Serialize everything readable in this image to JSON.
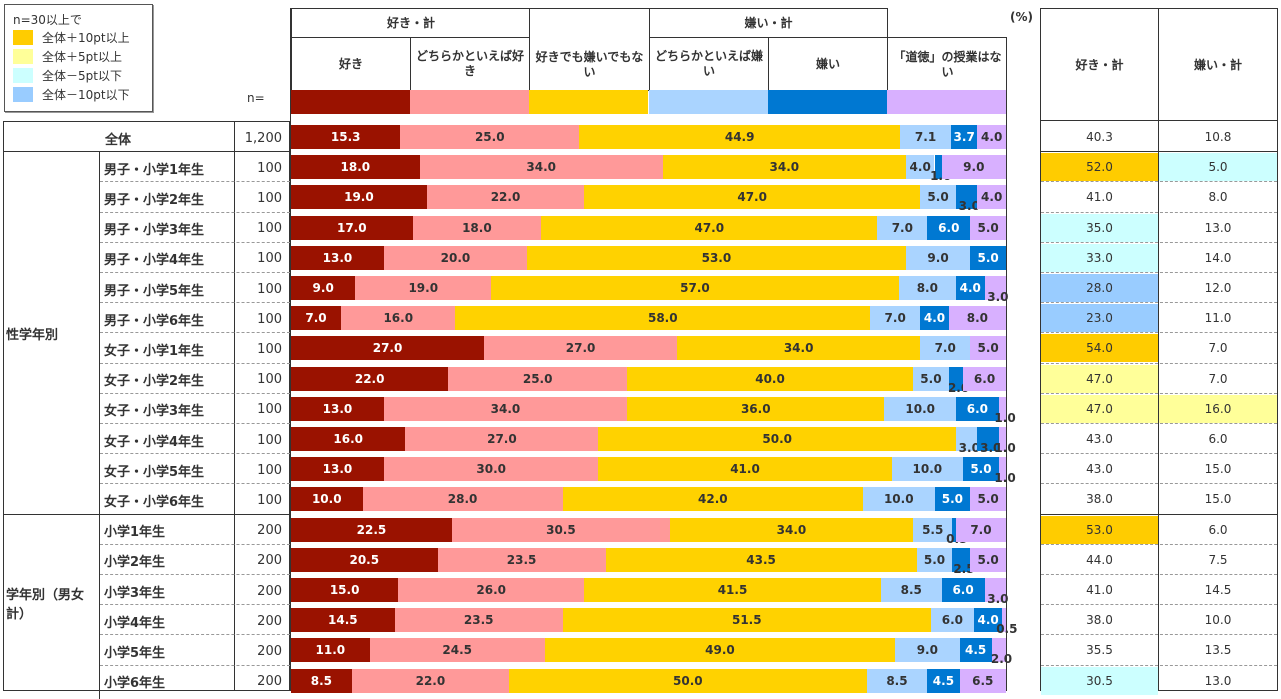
{
  "legend": {
    "title": "n=30以上で",
    "items": [
      {
        "label": "全体＋10pt以上",
        "color": "#FFCC00"
      },
      {
        "label": "全体＋5pt以上",
        "color": "#FFFF99"
      },
      {
        "label": "全体－5pt以下",
        "color": "#CCFFFF"
      },
      {
        "label": "全体－10pt以下",
        "color": "#99CCFF"
      }
    ]
  },
  "n_header": "n=",
  "pct_unit": "(%)",
  "header": {
    "group_like": "好き・計",
    "group_dislike": "嫌い・計",
    "columns": [
      "好き",
      "どちらかといえば好き",
      "好きでも嫌いでもない",
      "どちらかといえば嫌い",
      "嫌い",
      "「道徳」の授業はない"
    ]
  },
  "right_header": {
    "like_total": "好き・計",
    "dislike_total": "嫌い・計"
  },
  "groups": [
    {
      "label": "全体"
    },
    {
      "label": "性学年別"
    },
    {
      "label": "学年別（男女計）"
    }
  ],
  "chart_data": {
    "type": "bar",
    "orientation": "horizontal-stacked-100",
    "unit": "%",
    "series_names": [
      "好き",
      "どちらかといえば好き",
      "好きでも嫌いでもない",
      "どちらかといえば嫌い",
      "嫌い",
      "「道徳」の授業はない"
    ],
    "series_colors": [
      "#9A1200",
      "#FF9999",
      "#FFD200",
      "#AAD4FF",
      "#0078D2",
      "#D8B0FF"
    ],
    "categories": [
      "全体",
      "男子・小学1年生",
      "男子・小学2年生",
      "男子・小学3年生",
      "男子・小学4年生",
      "男子・小学5年生",
      "男子・小学6年生",
      "女子・小学1年生",
      "女子・小学2年生",
      "女子・小学3年生",
      "女子・小学4年生",
      "女子・小学5年生",
      "女子・小学6年生",
      "小学1年生",
      "小学2年生",
      "小学3年生",
      "小学4年生",
      "小学5年生",
      "小学6年生"
    ],
    "n": [
      "1,200",
      "100",
      "100",
      "100",
      "100",
      "100",
      "100",
      "100",
      "100",
      "100",
      "100",
      "100",
      "100",
      "200",
      "200",
      "200",
      "200",
      "200",
      "200"
    ],
    "values": [
      [
        15.3,
        25.0,
        44.9,
        7.1,
        3.7,
        4.0
      ],
      [
        18.0,
        34.0,
        34.0,
        4.0,
        1.0,
        9.0
      ],
      [
        19.0,
        22.0,
        47.0,
        5.0,
        3.0,
        4.0
      ],
      [
        17.0,
        18.0,
        47.0,
        7.0,
        6.0,
        5.0
      ],
      [
        13.0,
        20.0,
        53.0,
        9.0,
        5.0,
        0
      ],
      [
        9.0,
        19.0,
        57.0,
        8.0,
        4.0,
        3.0
      ],
      [
        7.0,
        16.0,
        58.0,
        7.0,
        4.0,
        8.0
      ],
      [
        27.0,
        27.0,
        34.0,
        7.0,
        0,
        5.0
      ],
      [
        22.0,
        25.0,
        40.0,
        5.0,
        2.0,
        6.0
      ],
      [
        13.0,
        34.0,
        36.0,
        10.0,
        6.0,
        1.0
      ],
      [
        16.0,
        27.0,
        50.0,
        3.0,
        3.0,
        1.0
      ],
      [
        13.0,
        30.0,
        41.0,
        10.0,
        5.0,
        1.0
      ],
      [
        10.0,
        28.0,
        42.0,
        10.0,
        5.0,
        5.0
      ],
      [
        22.5,
        30.5,
        34.0,
        5.5,
        0.5,
        7.0
      ],
      [
        20.5,
        23.5,
        43.5,
        5.0,
        2.5,
        5.0
      ],
      [
        15.0,
        26.0,
        41.5,
        8.5,
        6.0,
        3.0
      ],
      [
        14.5,
        23.5,
        51.5,
        6.0,
        4.0,
        0.5
      ],
      [
        11.0,
        24.5,
        49.0,
        9.0,
        4.5,
        2.0
      ],
      [
        8.5,
        22.0,
        50.0,
        8.5,
        4.5,
        6.5
      ]
    ],
    "like_total": [
      "40.3",
      "52.0",
      "41.0",
      "35.0",
      "33.0",
      "28.0",
      "23.0",
      "54.0",
      "47.0",
      "47.0",
      "43.0",
      "43.0",
      "38.0",
      "53.0",
      "44.0",
      "41.0",
      "38.0",
      "35.5",
      "30.5"
    ],
    "dislike_total": [
      "10.8",
      "5.0",
      "8.0",
      "13.0",
      "14.0",
      "12.0",
      "11.0",
      "7.0",
      "7.0",
      "16.0",
      "6.0",
      "15.0",
      "15.0",
      "6.0",
      "7.5",
      "14.5",
      "10.0",
      "13.5",
      "13.0"
    ],
    "like_highlight": [
      null,
      "+10",
      null,
      "-5",
      "-5",
      "-10",
      "-10",
      "+10",
      "+5",
      "+5",
      null,
      null,
      null,
      "+10",
      null,
      null,
      null,
      null,
      "-5"
    ],
    "dislike_highlight": [
      null,
      "-5",
      null,
      null,
      null,
      null,
      null,
      null,
      null,
      "+5",
      null,
      null,
      null,
      null,
      null,
      null,
      null,
      null,
      null
    ],
    "highlight_colors": {
      "+10": "#FFCC00",
      "+5": "#FFFF99",
      "-5": "#CCFFFF",
      "-10": "#99CCFF"
    },
    "xlim": [
      0,
      100
    ]
  }
}
